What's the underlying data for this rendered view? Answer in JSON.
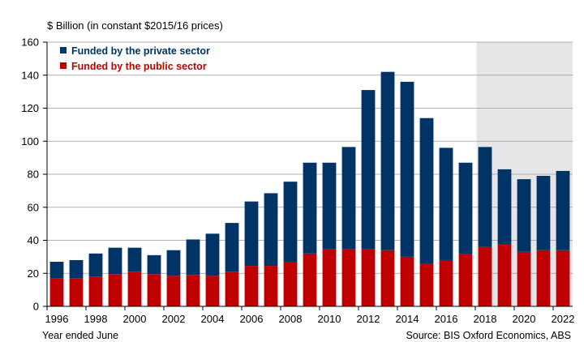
{
  "chart_data": {
    "type": "bar",
    "stacked": true,
    "y_unit_label": "$ Billion (in constant $2015/16 prices)",
    "xlabel": "Year ended June",
    "source": "Source: BIS Oxford Economics, ABS",
    "ylim": [
      0,
      160
    ],
    "yticks": [
      0,
      20,
      40,
      60,
      80,
      100,
      120,
      140,
      160
    ],
    "xtick_labels": [
      "1996",
      "1998",
      "2000",
      "2002",
      "2004",
      "2006",
      "2008",
      "2010",
      "2012",
      "2014",
      "2016",
      "2018",
      "2020",
      "2022"
    ],
    "categories": [
      "1996",
      "1997",
      "1998",
      "1999",
      "2000",
      "2001",
      "2002",
      "2003",
      "2004",
      "2005",
      "2006",
      "2007",
      "2008",
      "2009",
      "2010",
      "2011",
      "2012",
      "2013",
      "2014",
      "2015",
      "2016",
      "2017",
      "2018",
      "2019",
      "2020",
      "2021",
      "2022"
    ],
    "series": [
      {
        "name": "Funded by the public sector",
        "color": "#c00000",
        "values": [
          17,
          17,
          18,
          19.5,
          21,
          19.5,
          18.5,
          19,
          18.5,
          21,
          24.5,
          24.5,
          27,
          32,
          34.5,
          34.5,
          34.5,
          34,
          30,
          26,
          28,
          31.5,
          36,
          37.5,
          33,
          34,
          34
        ]
      },
      {
        "name": "Funded by the private sector",
        "color": "#003366",
        "values": [
          10,
          11,
          14,
          16,
          14.5,
          11.5,
          15.5,
          21.5,
          25.5,
          29.5,
          39,
          44,
          48.5,
          55,
          52.5,
          62,
          96.5,
          108,
          106,
          88,
          68,
          55.5,
          60.5,
          45.5,
          44,
          45,
          48
        ]
      }
    ],
    "forecast_shading_from": "2018",
    "grid": "horizontal",
    "legend_position": "top-left"
  }
}
